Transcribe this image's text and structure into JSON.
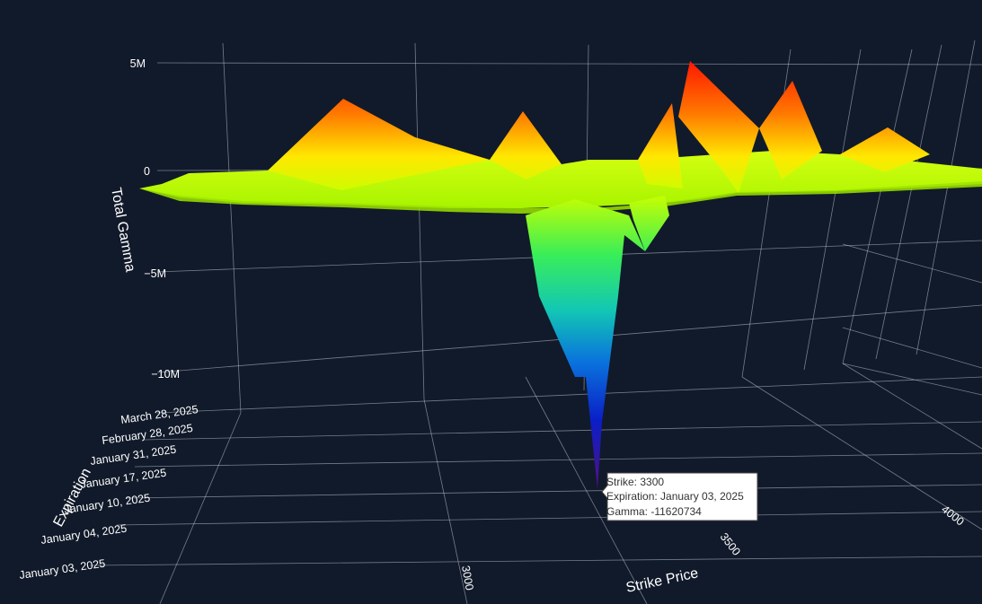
{
  "chart_data": {
    "type": "surface",
    "x_axis": {
      "title": "Strike Price",
      "ticks": [
        3000,
        3500,
        4000
      ]
    },
    "y_axis": {
      "title": "Expiration",
      "ticks": [
        "January 03, 2025",
        "January 04, 2025",
        "January 10, 2025",
        "January 17, 2025",
        "January 31, 2025",
        "February 28, 2025",
        "March 28, 2025"
      ]
    },
    "z_axis": {
      "title": "Total Gamma",
      "ticks": [
        {
          "value": 5000000,
          "label": "5M"
        },
        {
          "value": 0,
          "label": "0"
        },
        {
          "value": -5000000,
          "label": "−5M"
        },
        {
          "value": -10000000,
          "label": "−10M"
        }
      ]
    },
    "peaks": [
      {
        "strike": 3000,
        "gamma": 3300000
      },
      {
        "strike": 3150,
        "gamma": 2800000
      },
      {
        "strike": 3400,
        "gamma": 3200000
      },
      {
        "strike": 3500,
        "gamma": 5000000
      },
      {
        "strike": 3600,
        "gamma": 4100000
      },
      {
        "strike": 3750,
        "gamma": 2100000
      }
    ],
    "troughs": [
      {
        "strike": 3250,
        "gamma": -9800000
      },
      {
        "strike": 3300,
        "gamma": -11620734
      },
      {
        "strike": 3400,
        "gamma": -3800000
      }
    ],
    "colorscale": "jet",
    "tooltip": {
      "strike": "Strike: 3300",
      "expiration": "Expiration: January 03, 2025",
      "gamma": "Gamma: -11620734"
    }
  },
  "colors": {
    "background": "#111a2a",
    "grid": "#c9ced8",
    "text": "#ffffff"
  }
}
